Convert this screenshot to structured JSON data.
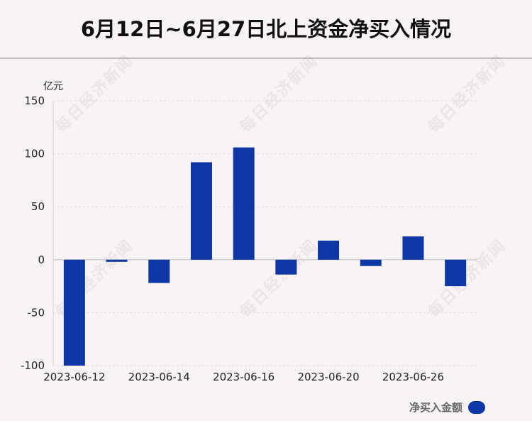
{
  "title": "6月12日~6月27日北上资金净买入情况",
  "unit_label": "亿元",
  "legend_label": "净买入金额",
  "watermark_text": "每日经济新闻",
  "colors": {
    "bar": "#0e36a4",
    "background": "#f8f4f6"
  },
  "chart_data": {
    "type": "bar",
    "x_tick_labels": [
      "2023-06-12",
      "2023-06-14",
      "2023-06-16",
      "2023-06-20",
      "2023-06-26"
    ],
    "y_tick_labels": [
      "150",
      "100",
      "50",
      "0",
      "-50",
      "-100"
    ],
    "ylim": [
      -100,
      150
    ],
    "grid": true,
    "legend_position": "bottom-right",
    "series": [
      {
        "name": "净买入金额",
        "values": [
          -100,
          -2,
          -22,
          92,
          106,
          -14,
          18,
          -6,
          22,
          -25
        ]
      }
    ]
  }
}
